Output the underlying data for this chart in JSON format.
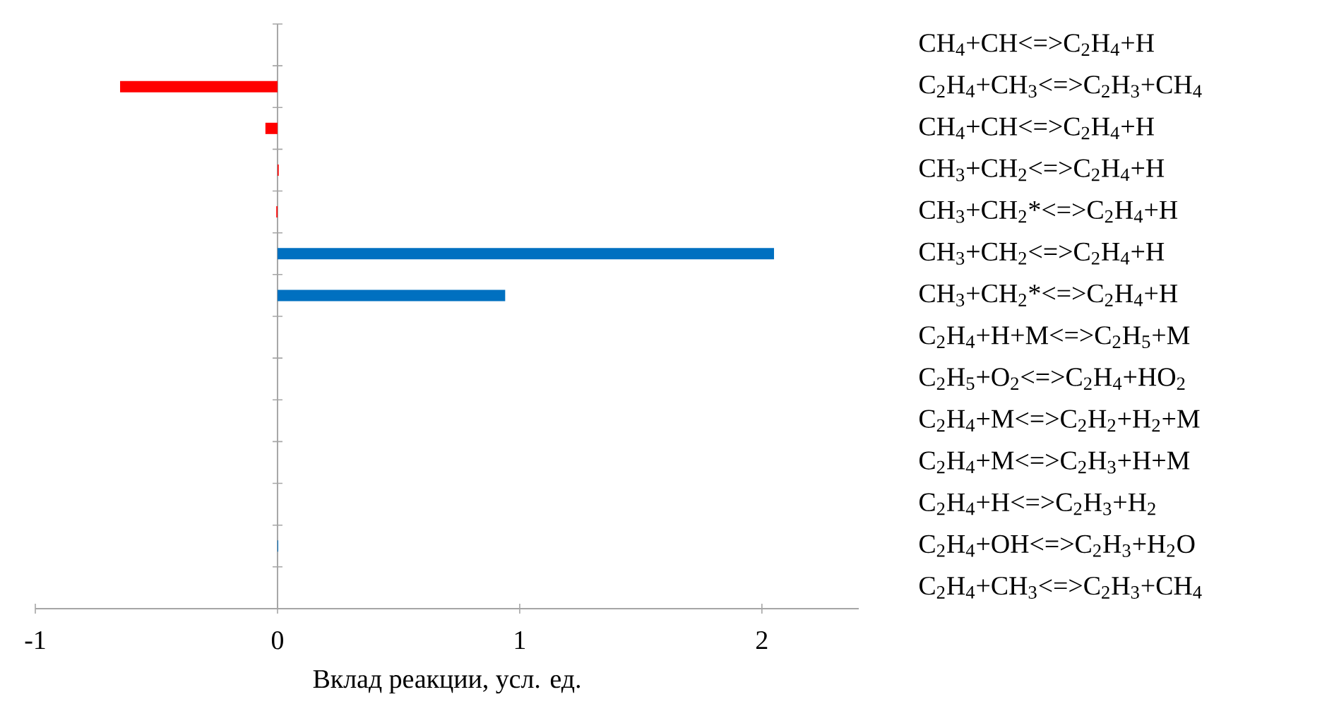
{
  "chart_data": {
    "type": "bar",
    "orientation": "horizontal",
    "categories": [
      "CH$_{4}$+CH<=>C$_{2}$H$_{4}$+H",
      "C$_{2}$H$_{4}$+CH$_{3}$<=>C$_{2}$H$_{3}$+CH$_{4}$",
      "CH$_{4}$+CH<=>C$_{2}$H$_{4}$+H",
      "CH$_{3}$+CH$_{2}$<=>C$_{2}$H$_{4}$+H",
      "CH$_{3}$+CH$_{2}$*<=>C$_{2}$H$_{4}$+H",
      "CH$_{3}$+CH$_{2}$<=>C$_{2}$H$_{4}$+H",
      "CH$_{3}$+CH$_{2}$*<=>C$_{2}$H$_{4}$+H",
      "C$_{2}$H$_{4}$+H+M<=>C$_{2}$H$_{5}$+M",
      "C$_{2}$H$_{5}$+O$_{2}$<=>C$_{2}$H$_{4}$+HO$_{2}$",
      "C$_{2}$H$_{4}$+M<=>C$_{2}$H$_{2}$+H$_{2}$+M",
      "C$_{2}$H$_{4}$+M<=>C$_{2}$H$_{3}$+H+M",
      "C$_{2}$H$_{4}$+H<=>C$_{2}$H$_{3}$+H$_{2}$",
      "C$_{2}$H$_{4}$+OH<=>C$_{2}$H$_{3}$+H$_{2}$O",
      "C$_{2}$H$_{4}$+CH$_{3}$<=>C$_{2}$H$_{3}$+CH$_{4}$"
    ],
    "values": [
      0,
      -0.65,
      -0.05,
      0.005,
      -0.005,
      2.05,
      0.94,
      0,
      0,
      0,
      0,
      0,
      0.003,
      0
    ],
    "colors": [
      "#0070c0",
      "#ff0000",
      "#ff0000",
      "#ff0000",
      "#ff0000",
      "#0070c0",
      "#0070c0",
      "#0070c0",
      "#0070c0",
      "#0070c0",
      "#0070c0",
      "#0070c0",
      "#0070c0",
      "#0070c0"
    ],
    "xlim": [
      -1,
      2.4
    ],
    "xticks": [
      -1,
      0,
      1,
      2
    ],
    "xlabel": "Вклад реакции, усл. ед."
  }
}
